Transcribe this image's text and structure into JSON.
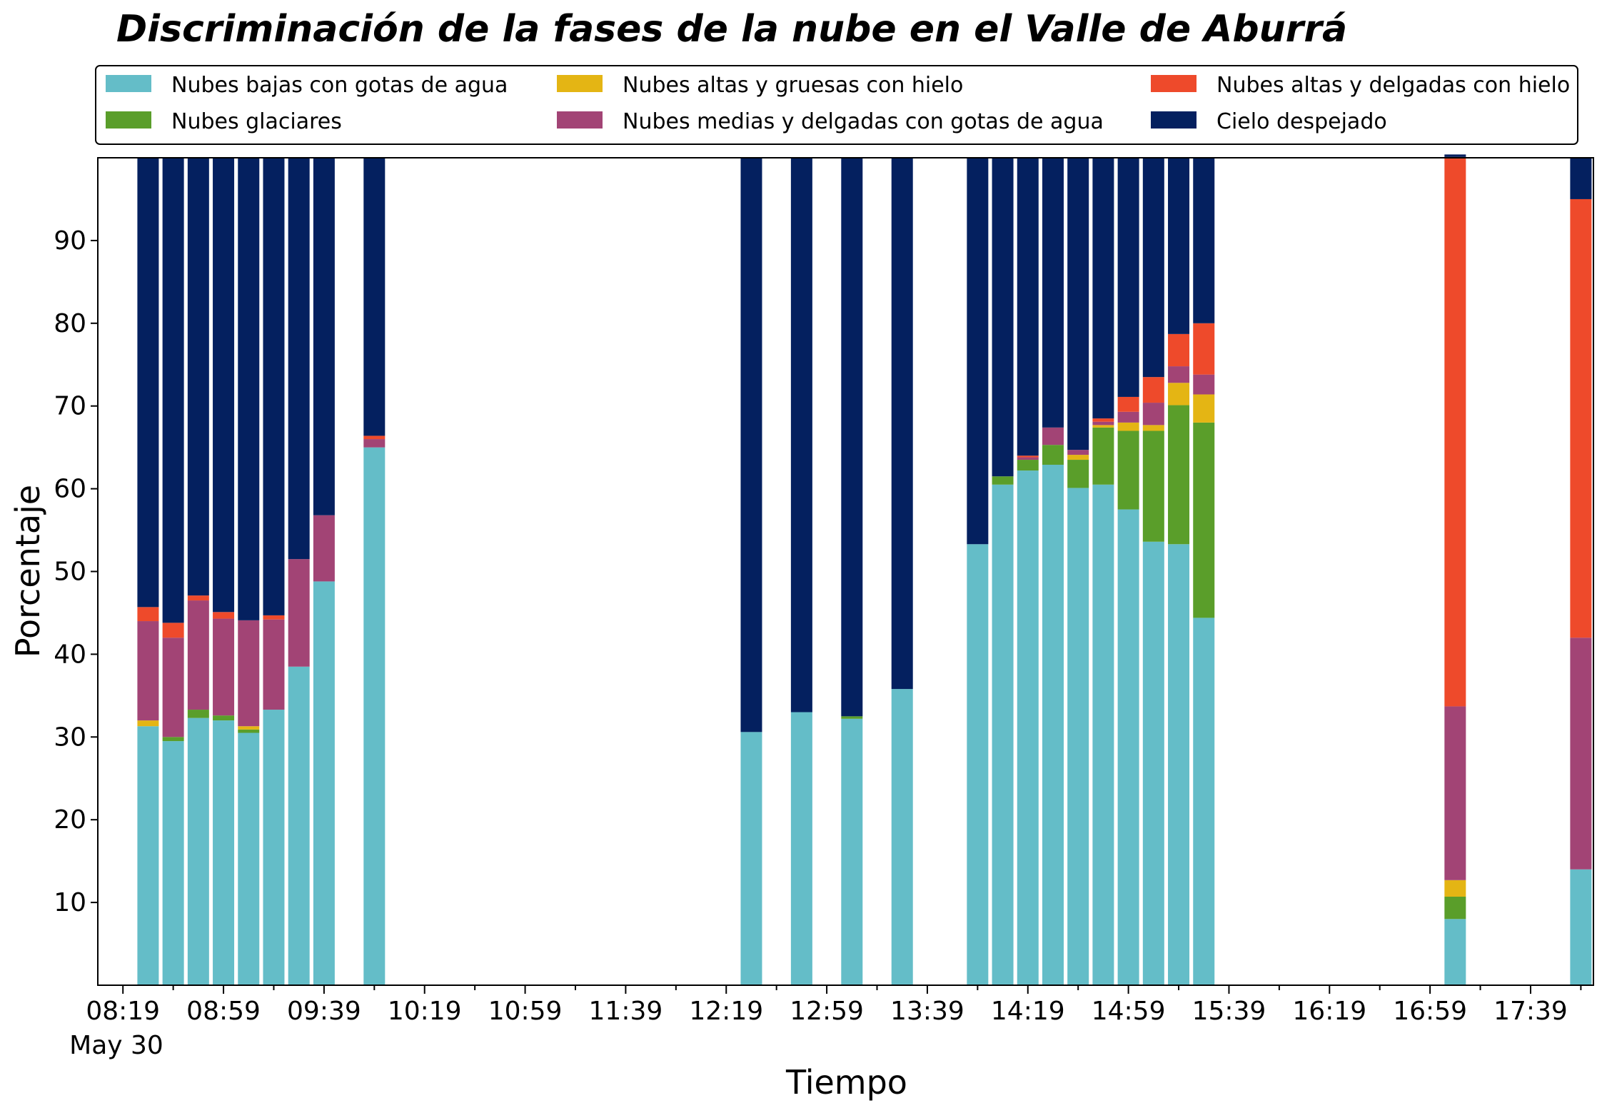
{
  "chart_data": {
    "type": "bar",
    "stacked": true,
    "title": "Discriminación de la fases de la nube en el Valle de Aburrá",
    "xlabel": "Tiempo",
    "ylabel": "Porcentaje",
    "ylim": [
      0,
      100
    ],
    "x_tick_labels": [
      "08:19",
      "08:59",
      "09:39",
      "10:19",
      "10:59",
      "11:39",
      "12:19",
      "12:59",
      "13:39",
      "14:19",
      "14:59",
      "15:39",
      "16:19",
      "16:59",
      "17:39"
    ],
    "x_date_label": "May 30",
    "y_tick_labels": [
      "10",
      "20",
      "30",
      "40",
      "50",
      "60",
      "70",
      "80",
      "90"
    ],
    "legend_placement": "top, above plot, 3 columns",
    "grid": false,
    "x": [
      "08:29",
      "08:39",
      "08:49",
      "08:59",
      "09:09",
      "09:19",
      "09:29",
      "09:39",
      "09:59",
      "12:29",
      "12:49",
      "13:09",
      "13:29",
      "13:59",
      "14:09",
      "14:19",
      "14:29",
      "14:39",
      "14:49",
      "14:59",
      "15:09",
      "15:19",
      "15:29",
      "17:09",
      "17:59"
    ],
    "series": [
      {
        "name": "Nubes bajas con gotas de agua",
        "color": "#64BDC8",
        "values": [
          31.3,
          29.5,
          32.3,
          32.0,
          30.5,
          33.3,
          38.5,
          48.8,
          65.0,
          30.6,
          33.0,
          32.2,
          35.8,
          53.3,
          60.5,
          62.2,
          62.9,
          60.1,
          60.5,
          57.5,
          53.6,
          53.3,
          44.4,
          8.0,
          14.0
        ]
      },
      {
        "name": "Nubes glaciares",
        "color": "#5A9E2A",
        "values": [
          0.0,
          0.5,
          1.0,
          0.6,
          0.4,
          0.0,
          0.0,
          0.0,
          0.0,
          0.0,
          0.0,
          0.3,
          0.0,
          0.0,
          1.0,
          1.3,
          2.4,
          3.4,
          6.9,
          9.5,
          13.4,
          16.8,
          23.6,
          2.7,
          0.0
        ]
      },
      {
        "name": "Nubes altas y gruesas con hielo",
        "color": "#E4B514",
        "values": [
          0.7,
          0.0,
          0.0,
          0.0,
          0.4,
          0.0,
          0.0,
          0.0,
          0.0,
          0.0,
          0.0,
          0.0,
          0.0,
          0.0,
          0.0,
          0.0,
          0.0,
          0.6,
          0.3,
          1.0,
          0.7,
          2.7,
          3.4,
          2.0,
          0.0
        ]
      },
      {
        "name": "Nubes medias y delgadas con gotas de agua",
        "color": "#A24475",
        "values": [
          12.0,
          12.0,
          13.2,
          11.7,
          12.8,
          10.9,
          13.0,
          8.0,
          1.0,
          0.0,
          0.0,
          0.0,
          0.0,
          0.0,
          0.0,
          0.3,
          2.1,
          0.6,
          0.4,
          1.3,
          2.7,
          2.0,
          2.4,
          21.0,
          28.0
        ]
      },
      {
        "name": "Nubes altas y delgadas con hielo",
        "color": "#EE4A2B",
        "values": [
          1.7,
          1.8,
          0.6,
          0.8,
          0.0,
          0.5,
          0.0,
          0.0,
          0.4,
          0.0,
          0.0,
          0.0,
          0.0,
          0.0,
          0.0,
          0.2,
          0.0,
          0.0,
          0.4,
          1.8,
          3.1,
          3.9,
          6.2,
          66.4,
          53.0
        ]
      },
      {
        "name": "Cielo despejado",
        "color": "#04205F",
        "values": [
          54.3,
          56.2,
          52.9,
          54.9,
          55.9,
          55.3,
          48.5,
          43.2,
          33.6,
          69.4,
          67.0,
          67.5,
          64.2,
          46.7,
          38.5,
          36.0,
          32.6,
          35.3,
          31.5,
          28.9,
          26.5,
          21.3,
          20.0,
          0.3,
          5.0
        ]
      }
    ]
  }
}
